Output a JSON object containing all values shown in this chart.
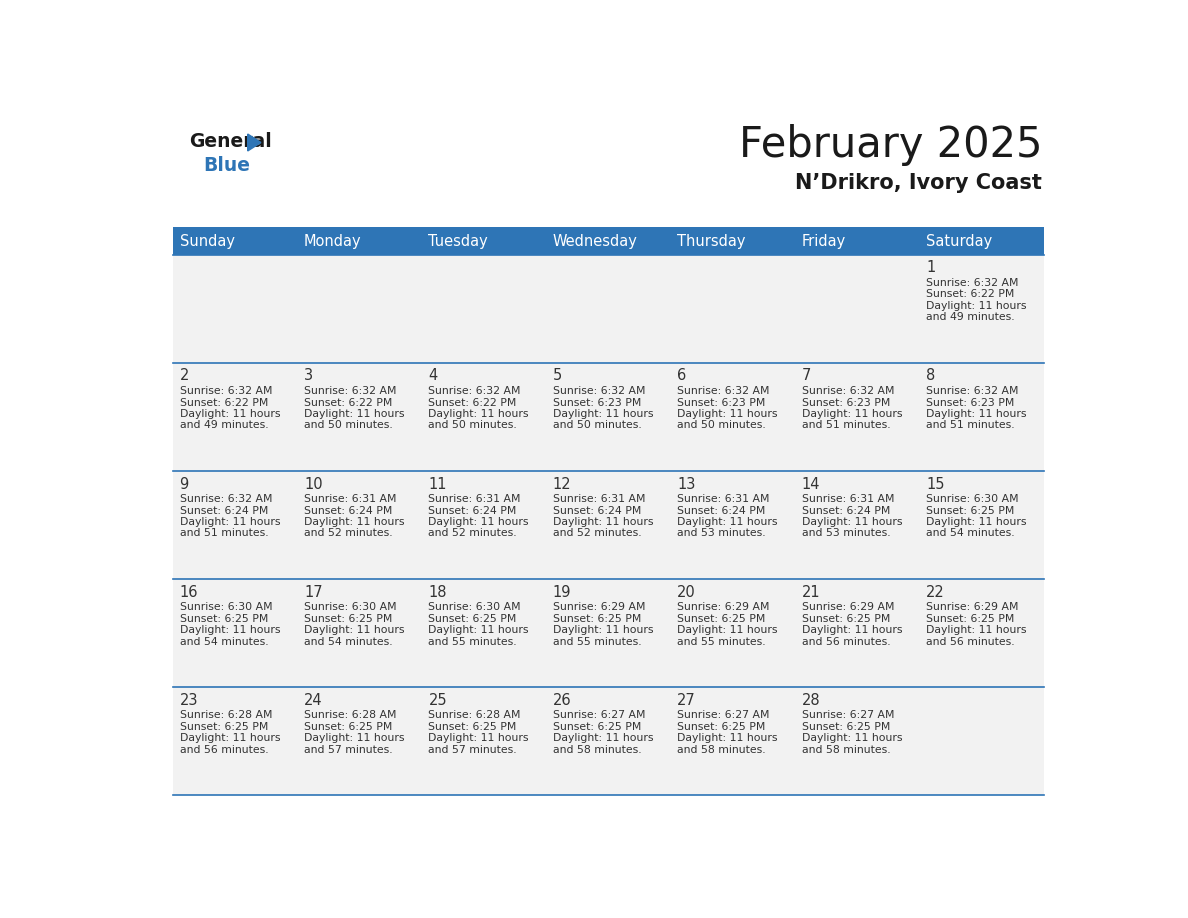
{
  "title": "February 2025",
  "subtitle": "N’Drikro, Ivory Coast",
  "header_bg": "#2e75b6",
  "header_text_color": "#ffffff",
  "days_of_week": [
    "Sunday",
    "Monday",
    "Tuesday",
    "Wednesday",
    "Thursday",
    "Friday",
    "Saturday"
  ],
  "grid_line_color": "#2e75b6",
  "row_separator_color": "#2e75b6",
  "cell_bg": "#f2f2f2",
  "day_number_color": "#333333",
  "info_text_color": "#333333",
  "background_color": "#ffffff",
  "calendar": [
    [
      null,
      null,
      null,
      null,
      null,
      null,
      1
    ],
    [
      2,
      3,
      4,
      5,
      6,
      7,
      8
    ],
    [
      9,
      10,
      11,
      12,
      13,
      14,
      15
    ],
    [
      16,
      17,
      18,
      19,
      20,
      21,
      22
    ],
    [
      23,
      24,
      25,
      26,
      27,
      28,
      null
    ]
  ],
  "day_data": {
    "1": {
      "sunrise": "6:32 AM",
      "sunset": "6:22 PM",
      "daylight": "11 hours and 49 minutes"
    },
    "2": {
      "sunrise": "6:32 AM",
      "sunset": "6:22 PM",
      "daylight": "11 hours and 49 minutes"
    },
    "3": {
      "sunrise": "6:32 AM",
      "sunset": "6:22 PM",
      "daylight": "11 hours and 50 minutes"
    },
    "4": {
      "sunrise": "6:32 AM",
      "sunset": "6:22 PM",
      "daylight": "11 hours and 50 minutes"
    },
    "5": {
      "sunrise": "6:32 AM",
      "sunset": "6:23 PM",
      "daylight": "11 hours and 50 minutes"
    },
    "6": {
      "sunrise": "6:32 AM",
      "sunset": "6:23 PM",
      "daylight": "11 hours and 50 minutes"
    },
    "7": {
      "sunrise": "6:32 AM",
      "sunset": "6:23 PM",
      "daylight": "11 hours and 51 minutes"
    },
    "8": {
      "sunrise": "6:32 AM",
      "sunset": "6:23 PM",
      "daylight": "11 hours and 51 minutes"
    },
    "9": {
      "sunrise": "6:32 AM",
      "sunset": "6:24 PM",
      "daylight": "11 hours and 51 minutes"
    },
    "10": {
      "sunrise": "6:31 AM",
      "sunset": "6:24 PM",
      "daylight": "11 hours and 52 minutes"
    },
    "11": {
      "sunrise": "6:31 AM",
      "sunset": "6:24 PM",
      "daylight": "11 hours and 52 minutes"
    },
    "12": {
      "sunrise": "6:31 AM",
      "sunset": "6:24 PM",
      "daylight": "11 hours and 52 minutes"
    },
    "13": {
      "sunrise": "6:31 AM",
      "sunset": "6:24 PM",
      "daylight": "11 hours and 53 minutes"
    },
    "14": {
      "sunrise": "6:31 AM",
      "sunset": "6:24 PM",
      "daylight": "11 hours and 53 minutes"
    },
    "15": {
      "sunrise": "6:30 AM",
      "sunset": "6:25 PM",
      "daylight": "11 hours and 54 minutes"
    },
    "16": {
      "sunrise": "6:30 AM",
      "sunset": "6:25 PM",
      "daylight": "11 hours and 54 minutes"
    },
    "17": {
      "sunrise": "6:30 AM",
      "sunset": "6:25 PM",
      "daylight": "11 hours and 54 minutes"
    },
    "18": {
      "sunrise": "6:30 AM",
      "sunset": "6:25 PM",
      "daylight": "11 hours and 55 minutes"
    },
    "19": {
      "sunrise": "6:29 AM",
      "sunset": "6:25 PM",
      "daylight": "11 hours and 55 minutes"
    },
    "20": {
      "sunrise": "6:29 AM",
      "sunset": "6:25 PM",
      "daylight": "11 hours and 55 minutes"
    },
    "21": {
      "sunrise": "6:29 AM",
      "sunset": "6:25 PM",
      "daylight": "11 hours and 56 minutes"
    },
    "22": {
      "sunrise": "6:29 AM",
      "sunset": "6:25 PM",
      "daylight": "11 hours and 56 minutes"
    },
    "23": {
      "sunrise": "6:28 AM",
      "sunset": "6:25 PM",
      "daylight": "11 hours and 56 minutes"
    },
    "24": {
      "sunrise": "6:28 AM",
      "sunset": "6:25 PM",
      "daylight": "11 hours and 57 minutes"
    },
    "25": {
      "sunrise": "6:28 AM",
      "sunset": "6:25 PM",
      "daylight": "11 hours and 57 minutes"
    },
    "26": {
      "sunrise": "6:27 AM",
      "sunset": "6:25 PM",
      "daylight": "11 hours and 58 minutes"
    },
    "27": {
      "sunrise": "6:27 AM",
      "sunset": "6:25 PM",
      "daylight": "11 hours and 58 minutes"
    },
    "28": {
      "sunrise": "6:27 AM",
      "sunset": "6:25 PM",
      "daylight": "11 hours and 58 minutes"
    }
  }
}
